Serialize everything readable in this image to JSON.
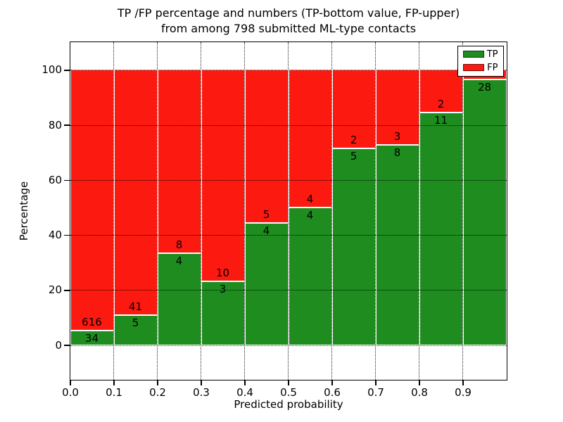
{
  "title": {
    "line1": "TP /FP percentage and numbers (TP-bottom value, FP-upper)",
    "line2": "from among 798 submitted ML-type contacts"
  },
  "axes": {
    "xlabel": "Predicted probability",
    "ylabel": "Percentage",
    "x_tick_labels": [
      "0.0",
      "0.1",
      "0.2",
      "0.3",
      "0.4",
      "0.5",
      "0.6",
      "0.7",
      "0.8",
      "0.9"
    ],
    "y_tick_labels": [
      "0",
      "20",
      "40",
      "60",
      "80",
      "100"
    ],
    "y_tick_values": [
      0,
      20,
      40,
      60,
      80,
      100
    ],
    "ylim": [
      -12.5,
      110.2
    ],
    "xlim": [
      0.0,
      1.0
    ],
    "grid_style": "dotted"
  },
  "legend": {
    "position": "upper-right",
    "items": [
      {
        "label": "TP",
        "color": "#1e8c1e"
      },
      {
        "label": "FP",
        "color": "#fb1910"
      }
    ]
  },
  "chart_data": {
    "type": "bar",
    "stacked": true,
    "normalized": "each 0.1-wide bin scaled to 100%",
    "title": "TP /FP percentage and numbers (TP-bottom value, FP-upper) from among 798 submitted ML-type contacts",
    "xlabel": "Predicted probability",
    "ylabel": "Percentage",
    "bin_edges": [
      0.0,
      0.1,
      0.2,
      0.3,
      0.4,
      0.5,
      0.6,
      0.7,
      0.8,
      0.9,
      1.0
    ],
    "series": [
      {
        "name": "TP",
        "color": "#1e8c1e",
        "counts": [
          34,
          5,
          4,
          3,
          4,
          4,
          5,
          8,
          11,
          28
        ]
      },
      {
        "name": "FP",
        "color": "#fb1910",
        "counts": [
          616,
          41,
          8,
          10,
          5,
          4,
          2,
          3,
          2,
          1
        ]
      }
    ],
    "total_contacts": 798,
    "ylim": [
      -12.5,
      110.2
    ],
    "grid": "on",
    "legend_position": "upper-right"
  }
}
